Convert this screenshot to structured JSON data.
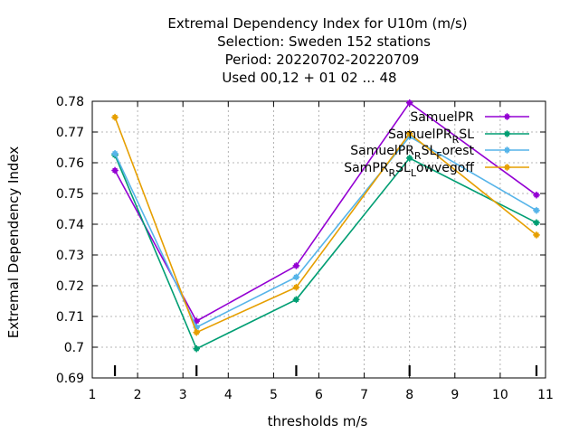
{
  "chart_data": {
    "type": "line",
    "title_lines": [
      "Extremal Dependency Index  for U10m (m/s)",
      "Selection: Sweden    152 stations",
      "Period: 20220702-20220709",
      "Used  00,12  + 01 02 ... 48"
    ],
    "xlabel": "thresholds m/s",
    "ylabel": "Extremal Dependency Index",
    "xlim": [
      1,
      11
    ],
    "ylim": [
      0.69,
      0.78
    ],
    "xticks": [
      "1",
      "2",
      "3",
      "4",
      "5",
      "6",
      "7",
      "8",
      "9",
      "10",
      "11"
    ],
    "yticks": [
      "0.69",
      "0.7",
      "0.71",
      "0.72",
      "0.73",
      "0.74",
      "0.75",
      "0.76",
      "0.77",
      "0.78"
    ],
    "threshold_marks": [
      1.5,
      3.3,
      5.5,
      8.0,
      10.8
    ],
    "grid": true,
    "legend_position": "top-right",
    "series": [
      {
        "name": "SamuelPR",
        "legend_main": "SamuelPR",
        "legend_sub": "",
        "legend_tail": "",
        "color": "#9400d3",
        "x": [
          1.5,
          3.3,
          5.5,
          8.0,
          10.8
        ],
        "y": [
          0.7575,
          0.7085,
          0.7265,
          0.7795,
          0.7495
        ]
      },
      {
        "name": "SamuelPR_R_SL",
        "legend_main": "SamuelPR",
        "legend_sub": "R",
        "legend_tail": "SL",
        "color": "#009e73",
        "x": [
          1.5,
          3.3,
          5.5,
          8.0,
          10.8
        ],
        "y": [
          0.7625,
          0.6995,
          0.7155,
          0.7615,
          0.7405
        ]
      },
      {
        "name": "SamuelPR_R_SL_orest",
        "legend_main": "SamuelPR",
        "legend_sub": "R",
        "legend_tail": "SL",
        "legend_sub2": "F",
        "legend_tail2": "orest",
        "color": "#56b4e9",
        "x": [
          1.5,
          3.3,
          5.5,
          8.0,
          10.8
        ],
        "y": [
          0.763,
          0.7065,
          0.7228,
          0.7685,
          0.7445
        ]
      },
      {
        "name": "SamPR_R_SL_owvegoff",
        "legend_main": "SamPR",
        "legend_sub": "R",
        "legend_tail": "SL",
        "legend_sub2": "L",
        "legend_tail2": "owvegoff",
        "color": "#e69f00",
        "x": [
          1.5,
          3.3,
          5.5,
          8.0,
          10.8
        ],
        "y": [
          0.7748,
          0.7048,
          0.7195,
          0.7695,
          0.7365
        ]
      }
    ]
  }
}
